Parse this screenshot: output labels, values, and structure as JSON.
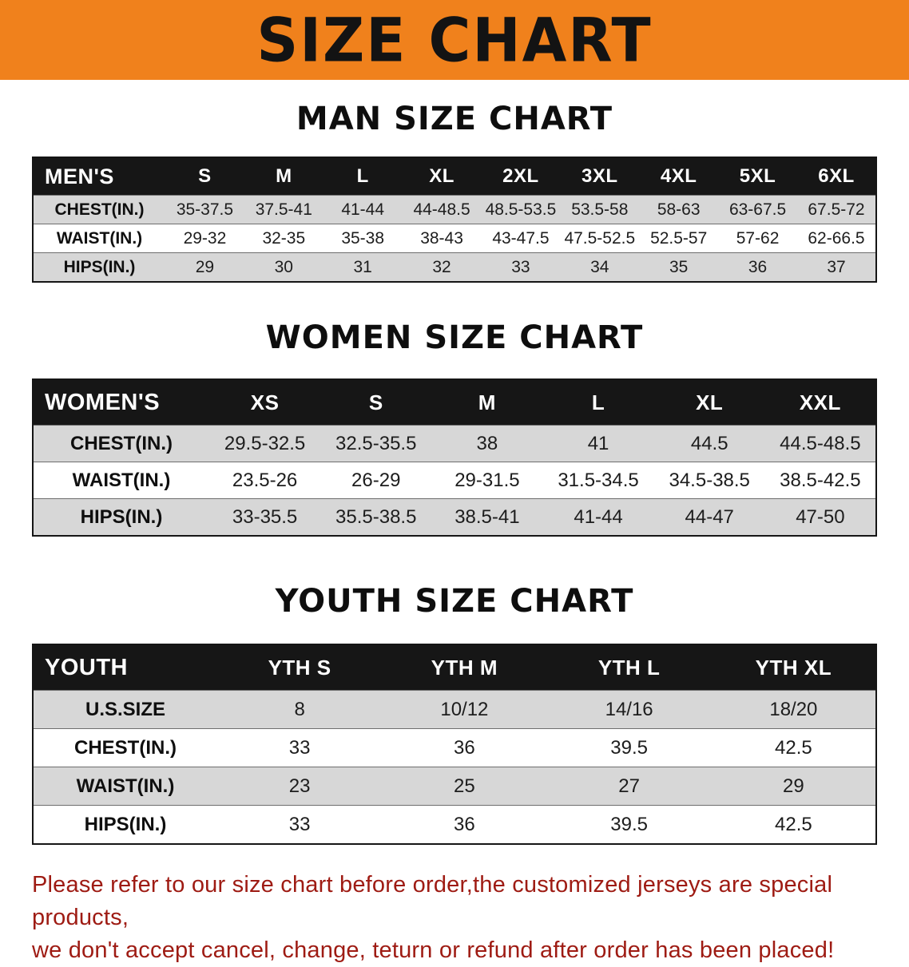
{
  "banner": {
    "title": "SIZE CHART",
    "bg_color": "#f0811c",
    "text_color": "#131313"
  },
  "men": {
    "title": "MAN SIZE CHART",
    "table": {
      "header": [
        "MEN'S",
        "S",
        "M",
        "L",
        "XL",
        "2XL",
        "3XL",
        "4XL",
        "5XL",
        "6XL"
      ],
      "rows": [
        {
          "label": "CHEST(IN.)",
          "values": [
            "35-37.5",
            "37.5-41",
            "41-44",
            "44-48.5",
            "48.5-53.5",
            "53.5-58",
            "58-63",
            "63-67.5",
            "67.5-72"
          ]
        },
        {
          "label": "WAIST(IN.)",
          "values": [
            "29-32",
            "32-35",
            "35-38",
            "38-43",
            "43-47.5",
            "47.5-52.5",
            "52.5-57",
            "57-62",
            "62-66.5"
          ]
        },
        {
          "label": "HIPS(IN.)",
          "values": [
            "29",
            "30",
            "31",
            "32",
            "33",
            "34",
            "35",
            "36",
            "37"
          ]
        }
      ]
    }
  },
  "women": {
    "title": "WOMEN SIZE CHART",
    "table": {
      "header": [
        "WOMEN'S",
        "XS",
        "S",
        "M",
        "L",
        "XL",
        "XXL"
      ],
      "rows": [
        {
          "label": "CHEST(IN.)",
          "values": [
            "29.5-32.5",
            "32.5-35.5",
            "38",
            "41",
            "44.5",
            "44.5-48.5"
          ]
        },
        {
          "label": "WAIST(IN.)",
          "values": [
            "23.5-26",
            "26-29",
            "29-31.5",
            "31.5-34.5",
            "34.5-38.5",
            "38.5-42.5"
          ]
        },
        {
          "label": "HIPS(IN.)",
          "values": [
            "33-35.5",
            "35.5-38.5",
            "38.5-41",
            "41-44",
            "44-47",
            "47-50"
          ]
        }
      ]
    }
  },
  "youth": {
    "title": "YOUTH SIZE CHART",
    "table": {
      "header": [
        "YOUTH",
        "YTH S",
        "YTH M",
        "YTH L",
        "YTH XL"
      ],
      "rows": [
        {
          "label": "U.S.SIZE",
          "values": [
            "8",
            "10/12",
            "14/16",
            "18/20"
          ]
        },
        {
          "label": "CHEST(IN.)",
          "values": [
            "33",
            "36",
            "39.5",
            "42.5"
          ]
        },
        {
          "label": "WAIST(IN.)",
          "values": [
            "23",
            "25",
            "27",
            "29"
          ]
        },
        {
          "label": "HIPS(IN.)",
          "values": [
            "33",
            "36",
            "39.5",
            "42.5"
          ]
        }
      ]
    }
  },
  "footer": {
    "line1": "Please refer to our size chart before order,the customized jerseys are special products,",
    "line2": "we don't accept cancel, change, teturn or refund after order has been placed!",
    "text_color": "#9e1b13"
  }
}
